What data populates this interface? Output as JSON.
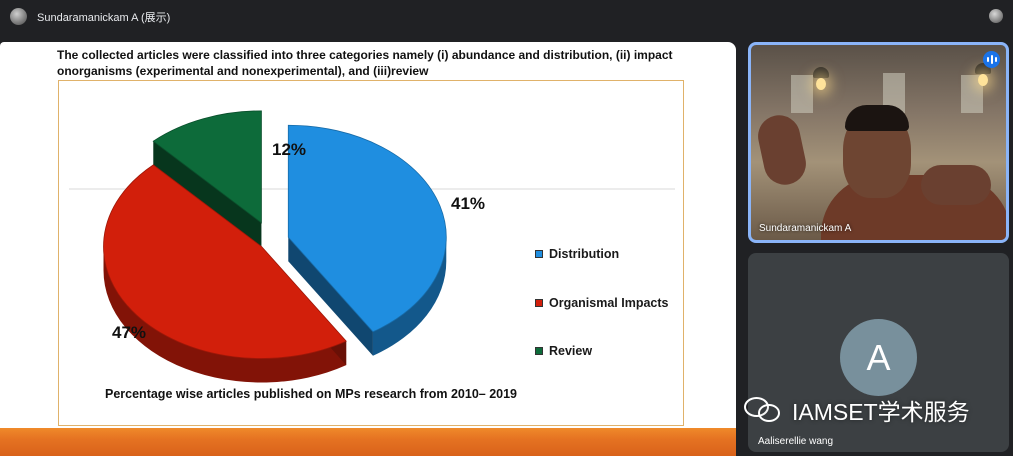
{
  "meeting": {
    "presenter_title": "Sundaramanickam A (展示)"
  },
  "slide": {
    "heading": "The collected articles were classified into three categories namely (i) abundance and distribution, (ii) impact onorganisms (experimental and nonexperimental), and (iii)review",
    "caption": "Percentage wise articles published on MPs research from 2010– 2019"
  },
  "chart_data": {
    "type": "pie",
    "title": "",
    "slices": [
      {
        "name": "Distribution",
        "value": 41,
        "label": "41%",
        "color": "#1f8ee0"
      },
      {
        "name": "Organismal Impacts",
        "value": 47,
        "label": "47%",
        "color": "#d21f0b"
      },
      {
        "name": "Review",
        "value": 12,
        "label": "12%",
        "color": "#0d6b3a"
      }
    ],
    "legend_position": "right",
    "exploded": true,
    "three_d": true
  },
  "participants": [
    {
      "name": "Sundaramanickam A",
      "speaking": true
    },
    {
      "name": "Aaliserellie wang",
      "initial": "A"
    }
  ],
  "icons": {
    "speaking": "audio-level-icon",
    "watermark": "wechat-icon"
  },
  "watermark": {
    "text": "IAMSET学术服务"
  }
}
